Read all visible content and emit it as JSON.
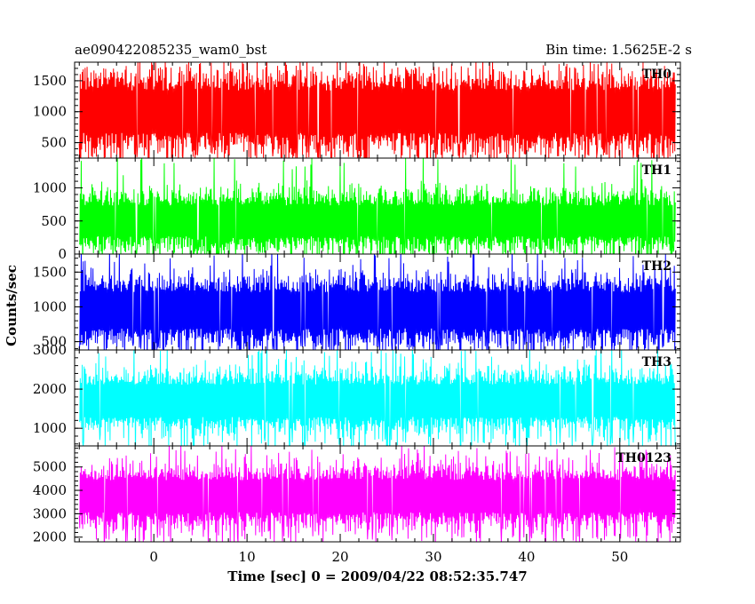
{
  "header": {
    "left_title": "ae090422085235_wam0_bst",
    "right_title": "Bin time: 1.5625E-2 s"
  },
  "chart_data": {
    "type": "line",
    "xlabel": "Time [sec] 0 = 2009/04/22 08:52:35.747",
    "ylabel": "Counts/sec",
    "xlim": [
      -8.5,
      56.5
    ],
    "xticks": [
      0,
      10,
      20,
      30,
      40,
      50
    ],
    "xtick_labels": [
      "0",
      "10",
      "20",
      "30",
      "40",
      "50"
    ],
    "x_minor_step": 2,
    "data_range": [
      -8,
      56
    ],
    "bin_time": 0.015625,
    "grid": false,
    "series": [
      {
        "name": "TH0",
        "color": "#ff0000",
        "ylim": [
          250,
          1800
        ],
        "yticks": [
          500,
          1000,
          1500
        ],
        "ytick_labels": [
          "500",
          "1000",
          "1500"
        ],
        "y_minor_step": 100,
        "approx_mean": 1000,
        "approx_low": 350,
        "approx_high": 1600,
        "approx_peak": 1800
      },
      {
        "name": "TH1",
        "color": "#00ff00",
        "ylim": [
          0,
          1450
        ],
        "yticks": [
          0,
          500,
          1000
        ],
        "ytick_labels": [
          "0",
          "500",
          "1000"
        ],
        "y_minor_step": 100,
        "approx_mean": 500,
        "approx_low": 150,
        "approx_high": 1000,
        "approx_peak": 1400
      },
      {
        "name": "TH2",
        "color": "#0000ff",
        "ylim": [
          380,
          1760
        ],
        "yticks": [
          500,
          1000,
          1500
        ],
        "ytick_labels": [
          "500",
          "1000",
          "1500"
        ],
        "y_minor_step": 100,
        "approx_mean": 950,
        "approx_low": 500,
        "approx_high": 1450,
        "approx_peak": 1760
      },
      {
        "name": "TH3",
        "color": "#00ffff",
        "ylim": [
          550,
          3000
        ],
        "yticks": [
          1000,
          2000,
          3000
        ],
        "ytick_labels": [
          "1000",
          "2000",
          "3000"
        ],
        "y_minor_step": 200,
        "approx_mean": 1700,
        "approx_low": 900,
        "approx_high": 2400,
        "approx_peak": 3000
      },
      {
        "name": "TH0123",
        "color": "#ff00ff",
        "ylim": [
          1800,
          5900
        ],
        "yticks": [
          2000,
          3000,
          4000,
          5000
        ],
        "ytick_labels": [
          "2000",
          "3000",
          "4000",
          "5000"
        ],
        "y_minor_step": 200,
        "approx_mean": 3750,
        "approx_low": 2500,
        "approx_high": 5000,
        "approx_peak": 5700
      }
    ]
  }
}
